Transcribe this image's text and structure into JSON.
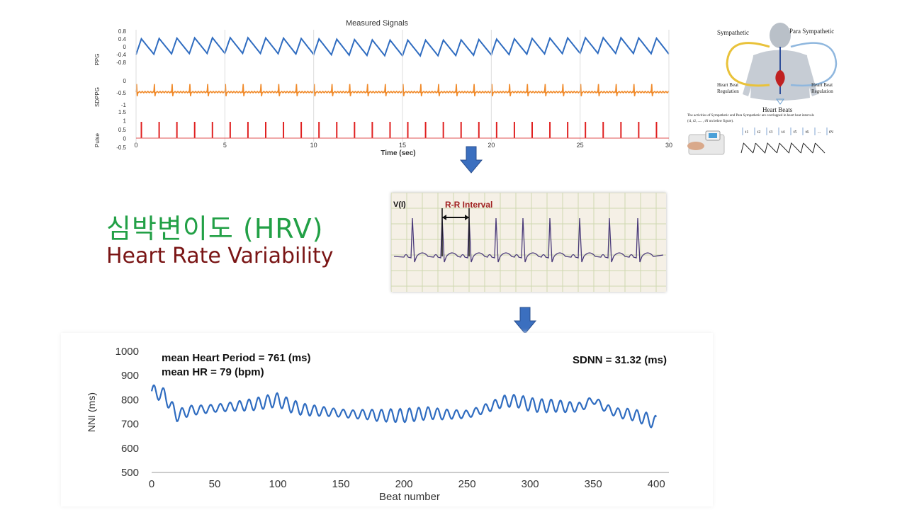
{
  "title_ko": "심박변이도 (HRV)",
  "title_en": "Heart Rate Variability",
  "signals": {
    "title": "Measured Signals",
    "xlabel": "Time (sec)",
    "x_ticks": [
      "0",
      "5",
      "10",
      "15",
      "20",
      "25",
      "30"
    ],
    "ppg": {
      "label": "PPG",
      "ticks": [
        "0.8",
        "0.4",
        "0",
        "-0.4",
        "-0.8"
      ],
      "color": "#2f6cc0"
    },
    "sdppg": {
      "label": "SDPPG",
      "ticks": [
        "0",
        "-0.5",
        "-1"
      ],
      "color": "#f08a2a"
    },
    "pulse": {
      "label": "Pulse",
      "ticks": [
        "1.5",
        "1",
        "0.5",
        "0",
        "-0.5"
      ],
      "color": "#e02020"
    }
  },
  "anatomy": {
    "sympathetic": "Sympathetic",
    "para_sympathetic": "Para Sympathetic",
    "left_regulation_1": "Heart Beat",
    "left_regulation_2": "Regulation",
    "right_regulation_1": "Heart Beat",
    "right_regulation_2": "Regulation",
    "heart_beats": "Heart Beats",
    "caption_1": "The activities of Sympathetic and Para Sympathetic are overlapped in heart beat intervals",
    "caption_2": "(t1, t2, ..... , tN on below figure).",
    "intervals": [
      "t1",
      "t2",
      "t3",
      "t4",
      "t5",
      "t6",
      "...",
      "tN"
    ]
  },
  "ecg": {
    "lead": "V(I)",
    "rr_label": "R-R Interval"
  },
  "nni_chart": {
    "annotation_1": "mean Heart Period = 761 (ms)",
    "annotation_2": "mean HR  = 79 (bpm)",
    "annotation_3": "SDNN = 31.32 (ms)",
    "ylabel": "NNI (ms)",
    "xlabel": "Beat number",
    "y_ticks": [
      "1000",
      "900",
      "800",
      "700",
      "600",
      "500"
    ],
    "x_ticks": [
      "0",
      "50",
      "100",
      "150",
      "200",
      "250",
      "300",
      "350",
      "400"
    ],
    "line_color": "#2f6cc0"
  },
  "chart_data": {
    "type": "line",
    "title": "",
    "xlabel": "Beat number",
    "ylabel": "NNI (ms)",
    "xlim": [
      0,
      410
    ],
    "ylim": [
      500,
      1000
    ],
    "series": [
      {
        "x": [
          0,
          10,
          20,
          30,
          40,
          50,
          60,
          70,
          80,
          90,
          100,
          110,
          120,
          130,
          140,
          150,
          160,
          170,
          180,
          190,
          200,
          210,
          220,
          230,
          240,
          250,
          260,
          270,
          280,
          290,
          300,
          310,
          320,
          330,
          340,
          350,
          360,
          370,
          380,
          390,
          400
        ],
        "values": [
          835,
          820,
          735,
          755,
          760,
          765,
          770,
          775,
          780,
          790,
          800,
          775,
          760,
          755,
          750,
          745,
          740,
          740,
          735,
          735,
          735,
          740,
          745,
          740,
          740,
          740,
          755,
          775,
          795,
          795,
          780,
          775,
          775,
          770,
          770,
          800,
          765,
          745,
          740,
          725,
          705
        ]
      }
    ]
  }
}
